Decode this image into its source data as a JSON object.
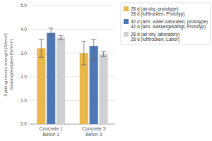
{
  "chart_data": {
    "type": "bar",
    "categories": [
      "Concrete 1\nBeton 1",
      "Concrete 3\nBeton 3"
    ],
    "series": [
      {
        "name": "28 d (air-dry, prototype)\n28 d (lufttrocken, Prototyp)",
        "color": "#E8B84B",
        "values": [
          3.2,
          3.0
        ],
        "error_low": [
          0.38,
          0.5
        ],
        "error_high": [
          0.38,
          0.5
        ]
      },
      {
        "name": "42 d (atm. water-saturated, prototype)\n42 d (atm. wassergesättigt, Prototyp)",
        "color": "#4E78B5",
        "values": [
          3.85,
          3.3
        ],
        "error_low": [
          0.12,
          0.6
        ],
        "error_high": [
          0.2,
          0.28
        ]
      },
      {
        "name": "28 d (air-dry, laboratory)\n28 d (lufttrocken, Labor)",
        "color": "#D0D0D0",
        "values": [
          3.65,
          2.95
        ],
        "error_low": [
          0.08,
          0.1
        ],
        "error_high": [
          0.08,
          0.1
        ]
      }
    ],
    "ylabel": "Splitting tensile strength [N/mm²]\nSpaltzugfestigkeit [N/mm²]",
    "ylim": [
      0.0,
      5.0
    ],
    "yticks": [
      {
        "value": 0.0,
        "label": "0.0"
      },
      {
        "value": 1.0,
        "label": "1.0"
      },
      {
        "value": 2.0,
        "label": "2.0"
      },
      {
        "value": 3.0,
        "label": "3.0"
      },
      {
        "value": 4.0,
        "label": "4.0"
      },
      {
        "value": 5.0,
        "label": "5.0"
      }
    ],
    "grid": true,
    "legend": "upper right"
  }
}
